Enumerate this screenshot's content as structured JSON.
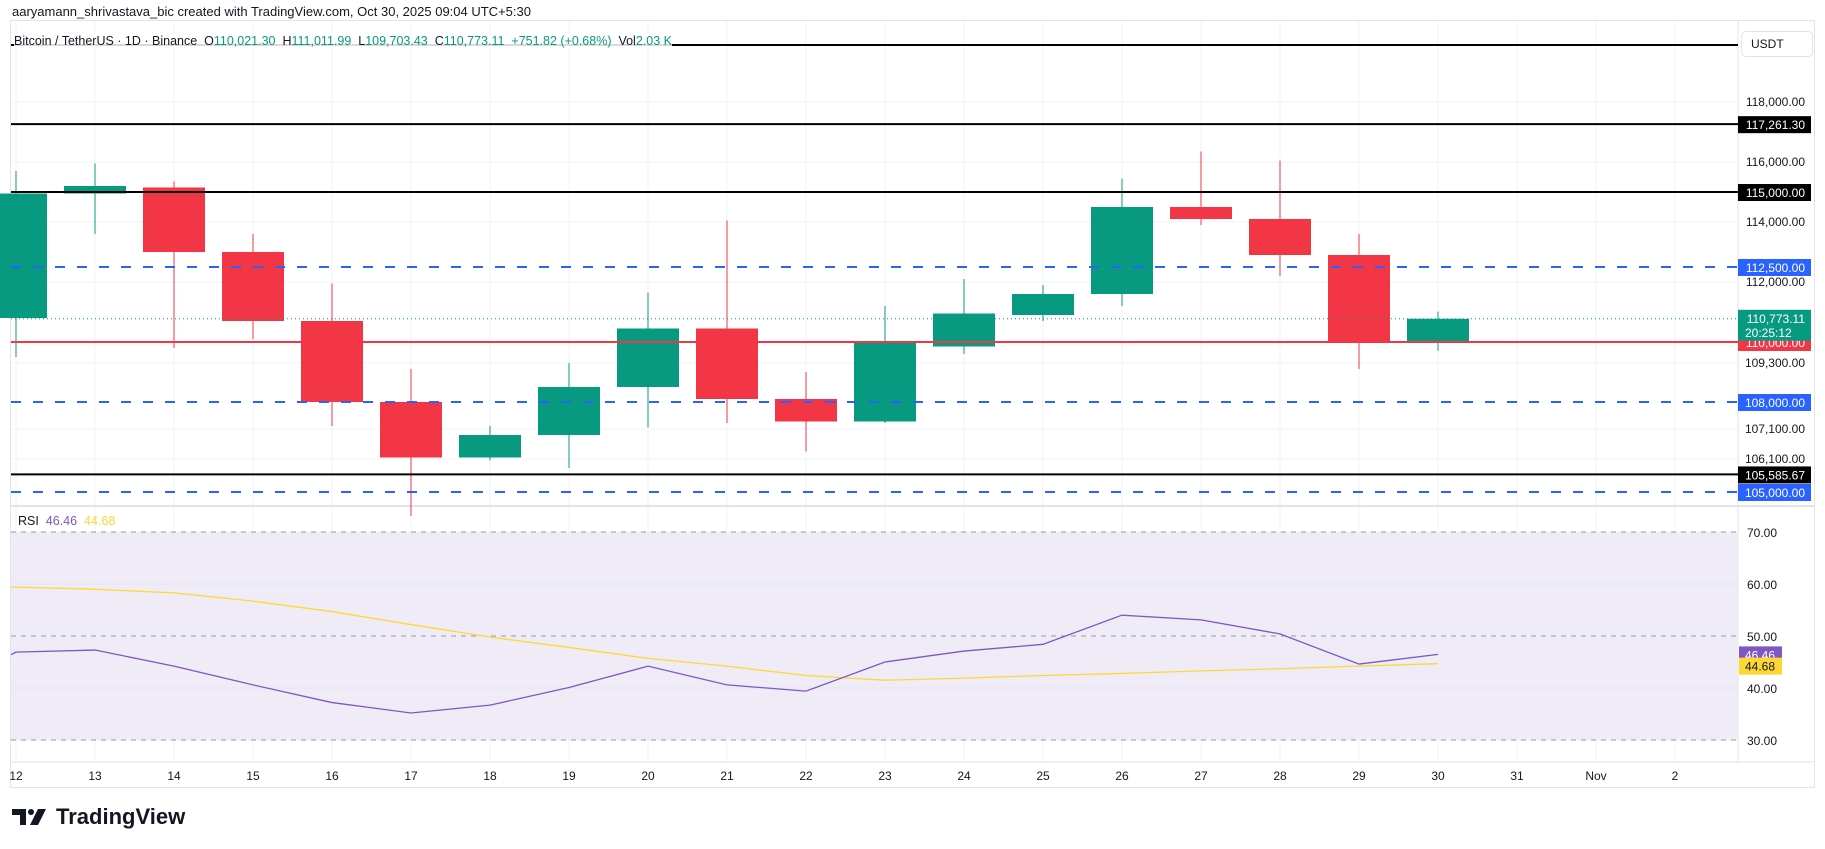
{
  "credit": "aaryamann_shrivastava_bic created with TradingView.com, Oct 30, 2025 09:04 UTC+5:30",
  "legend": {
    "symbol": "Bitcoin / TetherUS · 1D · Binance",
    "o_label": "O",
    "o": "110,021.30",
    "h_label": "H",
    "h": "111,011.99",
    "l_label": "L",
    "l": "109,703.43",
    "c_label": "C",
    "c": "110,773.11",
    "change": "+751.82 (+0.68%)",
    "vol_label": "Vol",
    "vol": "2.03 K"
  },
  "currency_button": "USDT",
  "colors": {
    "up": "#089981",
    "down": "#f23645",
    "blue": "#2962ff",
    "rsi": "#7e57c2",
    "rsi_ma": "#fdd835",
    "rsi_bg": "#efecf7"
  },
  "price_axis": {
    "ticks": [
      "118,000.00",
      "116,000.00",
      "114,000.00",
      "112,000.00",
      "109,300.00",
      "107,100.00",
      "106,100.00"
    ],
    "tick_values": [
      118000,
      116000,
      114000,
      112000,
      109300,
      107100,
      106100
    ]
  },
  "levels": [
    {
      "value": 119900,
      "label": null,
      "style": "black"
    },
    {
      "value": 117261.3,
      "label": "117,261.30",
      "style": "black"
    },
    {
      "value": 115000,
      "label": "115,000.00",
      "style": "black"
    },
    {
      "value": 112500,
      "label": "112,500.00",
      "style": "blue"
    },
    {
      "value": 110000,
      "label": "110,000.00",
      "style": "red"
    },
    {
      "value": 108000,
      "label": "108,000.00",
      "style": "blue"
    },
    {
      "value": 105585.67,
      "label": "105,585.67",
      "style": "black"
    },
    {
      "value": 105000,
      "label": "105,000.00",
      "style": "blue"
    }
  ],
  "last_price": {
    "value": 110773.11,
    "label": "110,773.11",
    "countdown": "20:25:12"
  },
  "time_axis": [
    "12",
    "13",
    "14",
    "15",
    "16",
    "17",
    "18",
    "19",
    "20",
    "21",
    "22",
    "23",
    "24",
    "25",
    "26",
    "27",
    "28",
    "29",
    "30",
    "31",
    "Nov",
    "2"
  ],
  "chart_data": {
    "type": "candlestick",
    "title": "Bitcoin / TetherUS · 1D · Binance",
    "x": [
      "Oct 12",
      "Oct 13",
      "Oct 14",
      "Oct 15",
      "Oct 16",
      "Oct 17",
      "Oct 18",
      "Oct 19",
      "Oct 20",
      "Oct 21",
      "Oct 22",
      "Oct 23",
      "Oct 24",
      "Oct 25",
      "Oct 26",
      "Oct 27",
      "Oct 28",
      "Oct 29",
      "Oct 30"
    ],
    "ohlc": [
      [
        110800,
        115700,
        109500,
        114950
      ],
      [
        114950,
        115950,
        113600,
        115200
      ],
      [
        115150,
        115350,
        109800,
        113000
      ],
      [
        113000,
        113600,
        110100,
        110700
      ],
      [
        110700,
        111950,
        107200,
        108000
      ],
      [
        108000,
        109100,
        104200,
        106150
      ],
      [
        106150,
        107200,
        106050,
        106900
      ],
      [
        106900,
        109300,
        105800,
        108500
      ],
      [
        108500,
        111650,
        107150,
        110450
      ],
      [
        110450,
        114050,
        107300,
        108100
      ],
      [
        108100,
        109000,
        106350,
        107350
      ],
      [
        107350,
        111200,
        107300,
        110000
      ],
      [
        109850,
        112100,
        109600,
        110950
      ],
      [
        110900,
        111900,
        110700,
        111600
      ],
      [
        111600,
        115450,
        111200,
        114500
      ],
      [
        114500,
        116350,
        113900,
        114100
      ],
      [
        114100,
        116050,
        112200,
        112900
      ],
      [
        112900,
        113600,
        109100,
        110020
      ],
      [
        110021.3,
        111011.99,
        109703.43,
        110773.11
      ]
    ],
    "ylim": [
      104000,
      120500
    ],
    "rsi": {
      "label": "RSI",
      "value": "46.46",
      "ma_value": "44.68",
      "ticks": [
        "70.00",
        "60.00",
        "50.00",
        "40.00",
        "30.00"
      ],
      "tick_values": [
        70,
        60,
        50,
        40,
        30
      ],
      "bands": [
        70,
        50,
        30
      ],
      "series": [
        46.9,
        47.3,
        44.2,
        40.6,
        37.2,
        35.2,
        36.7,
        40.1,
        44.2,
        40.6,
        39.4,
        45.0,
        47.1,
        48.4,
        54.0,
        53.1,
        50.4,
        44.6,
        46.46
      ],
      "ma_series": [
        59.4,
        59.0,
        58.3,
        56.7,
        54.7,
        52.2,
        49.8,
        47.8,
        45.7,
        44.2,
        42.4,
        41.5,
        41.9,
        42.4,
        42.8,
        43.3,
        43.7,
        44.2,
        44.68
      ]
    }
  },
  "brand": "TradingView"
}
